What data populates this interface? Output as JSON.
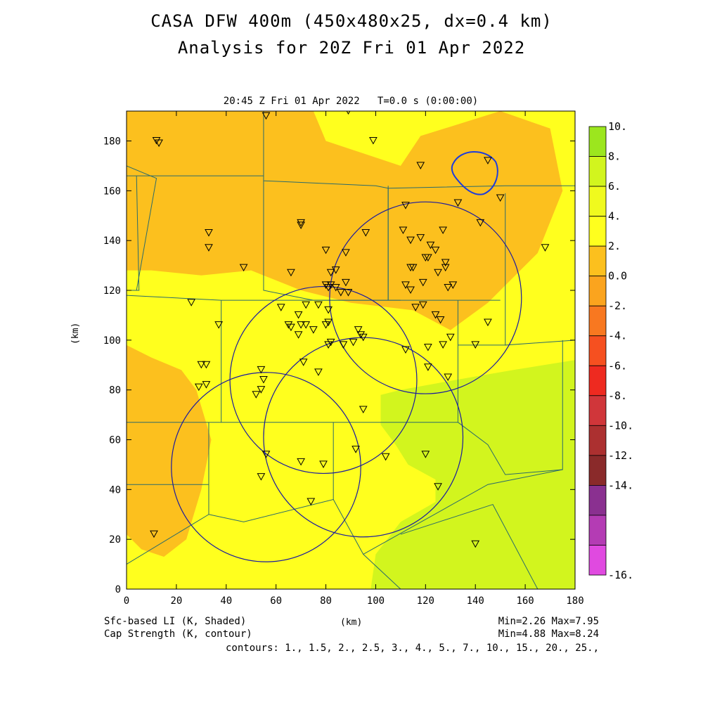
{
  "title_line1": "CASA DFW 400m (450x480x25, dx=0.4 km)",
  "title_line2": "Analysis for 20Z Fri 01 Apr 2022",
  "panel_subtitle": "20:45 Z Fri 01 Apr 2022   T=0.0 s (0:00:00)",
  "footer": {
    "field1_label": "Sfc-based LI (K, Shaded)",
    "field2_label": "Cap Strength (K, contour)",
    "field1_range": "Min=2.26 Max=7.95",
    "field2_range": "Min=4.88 Max=8.24",
    "contours": "contours: 1., 1.5, 2., 2.5, 3., 4., 5., 7., 10., 15., 20., 25.,"
  },
  "chart_data": {
    "type": "heatmap",
    "xlabel": "(km)",
    "ylabel": "(km)",
    "xlim": [
      0,
      180
    ],
    "ylim": [
      0,
      192
    ],
    "x_ticks": [
      0,
      20,
      40,
      60,
      80,
      100,
      120,
      140,
      160,
      180
    ],
    "y_ticks": [
      0,
      20,
      40,
      60,
      80,
      100,
      120,
      140,
      160,
      180
    ],
    "colorbar": {
      "labels": [
        "10.",
        "8.",
        "6.",
        "4.",
        "2.",
        "0.0",
        "-2.",
        "-4.",
        "-6.",
        "-8.",
        "-10.",
        "-12.",
        "-14.",
        "-16."
      ],
      "colors": [
        "#9ce61e",
        "#d2f51e",
        "#f0fa1e",
        "#ffff1e",
        "#fcc01e",
        "#fba41e",
        "#f87820",
        "#f65020",
        "#ee2a20",
        "#d0363a",
        "#ac3030",
        "#8a2a2a",
        "#8a3090",
        "#b43cb4",
        "#e04ae0"
      ]
    },
    "shaded_regions": [
      {
        "level": "2-4",
        "color": "#fcc01e",
        "polygon": [
          [
            0,
            192
          ],
          [
            75,
            192
          ],
          [
            80,
            180
          ],
          [
            110,
            170
          ],
          [
            118,
            182
          ],
          [
            150,
            192
          ],
          [
            170,
            185
          ],
          [
            175,
            160
          ],
          [
            165,
            135
          ],
          [
            145,
            115
          ],
          [
            130,
            104
          ],
          [
            115,
            112
          ],
          [
            90,
            115
          ],
          [
            70,
            120
          ],
          [
            50,
            128
          ],
          [
            30,
            126
          ],
          [
            10,
            128
          ],
          [
            0,
            128
          ]
        ]
      },
      {
        "level": "2-4",
        "color": "#fcc01e",
        "polygon": [
          [
            0,
            98
          ],
          [
            10,
            93
          ],
          [
            22,
            88
          ],
          [
            28,
            80
          ],
          [
            34,
            60
          ],
          [
            30,
            40
          ],
          [
            24,
            20
          ],
          [
            15,
            13
          ],
          [
            6,
            16
          ],
          [
            0,
            22
          ]
        ]
      },
      {
        "level": "6-8",
        "color": "#d2f51e",
        "polygon": [
          [
            180,
            92
          ],
          [
            155,
            88
          ],
          [
            132,
            84
          ],
          [
            110,
            80
          ],
          [
            102,
            78
          ],
          [
            102,
            66
          ],
          [
            108,
            58
          ],
          [
            113,
            50
          ],
          [
            124,
            44
          ],
          [
            124,
            35
          ],
          [
            110,
            27
          ],
          [
            100,
            14
          ],
          [
            98,
            0
          ],
          [
            180,
            0
          ]
        ]
      }
    ],
    "cap_contours": [
      {
        "shape": "circle",
        "center": [
          120,
          117
        ],
        "radius": 38.5
      },
      {
        "shape": "circle",
        "center": [
          79,
          84
        ],
        "radius": 37.5
      },
      {
        "shape": "circle",
        "center": [
          56,
          49
        ],
        "radius": 38
      },
      {
        "shape": "circle",
        "center": [
          95,
          61
        ],
        "radius": 40
      }
    ],
    "stations": [
      [
        12,
        180
      ],
      [
        13,
        179
      ],
      [
        56,
        190
      ],
      [
        89,
        192
      ],
      [
        99,
        180
      ],
      [
        118,
        170
      ],
      [
        145,
        172
      ],
      [
        150,
        157
      ],
      [
        133,
        155
      ],
      [
        33,
        143
      ],
      [
        33,
        137
      ],
      [
        70,
        147
      ],
      [
        70,
        146
      ],
      [
        112,
        154
      ],
      [
        118,
        141
      ],
      [
        142,
        147
      ],
      [
        127,
        144
      ],
      [
        111,
        144
      ],
      [
        114,
        140
      ],
      [
        122,
        138
      ],
      [
        124,
        136
      ],
      [
        121,
        133
      ],
      [
        120,
        133
      ],
      [
        128,
        131
      ],
      [
        168,
        137
      ],
      [
        47,
        129
      ],
      [
        66,
        127
      ],
      [
        80,
        136
      ],
      [
        88,
        135
      ],
      [
        96,
        143
      ],
      [
        82,
        127
      ],
      [
        84,
        128
      ],
      [
        88,
        123
      ],
      [
        80,
        122
      ],
      [
        82,
        122
      ],
      [
        81,
        121
      ],
      [
        84,
        121
      ],
      [
        86,
        119
      ],
      [
        89,
        119
      ],
      [
        112,
        122
      ],
      [
        114,
        120
      ],
      [
        114,
        129
      ],
      [
        115,
        129
      ],
      [
        125,
        127
      ],
      [
        128,
        129
      ],
      [
        131,
        122
      ],
      [
        129,
        121
      ],
      [
        119,
        123
      ],
      [
        77,
        114
      ],
      [
        81,
        112
      ],
      [
        72,
        114
      ],
      [
        62,
        113
      ],
      [
        69,
        110
      ],
      [
        116,
        113
      ],
      [
        119,
        114
      ],
      [
        124,
        110
      ],
      [
        126,
        108
      ],
      [
        145,
        107
      ],
      [
        37,
        106
      ],
      [
        26,
        115
      ],
      [
        65,
        106
      ],
      [
        66,
        105
      ],
      [
        70,
        106
      ],
      [
        72,
        106
      ],
      [
        80,
        106
      ],
      [
        81,
        107
      ],
      [
        69,
        102
      ],
      [
        75,
        104
      ],
      [
        93,
        104
      ],
      [
        94,
        102
      ],
      [
        95,
        101
      ],
      [
        82,
        99
      ],
      [
        81,
        98
      ],
      [
        87,
        98
      ],
      [
        91,
        99
      ],
      [
        130,
        101
      ],
      [
        127,
        98
      ],
      [
        121,
        97
      ],
      [
        140,
        98
      ],
      [
        112,
        96
      ],
      [
        30,
        90
      ],
      [
        32,
        90
      ],
      [
        71,
        91
      ],
      [
        77,
        87
      ],
      [
        54,
        88
      ],
      [
        55,
        84
      ],
      [
        121,
        89
      ],
      [
        129,
        85
      ],
      [
        29,
        81
      ],
      [
        32,
        82
      ],
      [
        54,
        80
      ],
      [
        52,
        78
      ],
      [
        95,
        72
      ],
      [
        92,
        56
      ],
      [
        104,
        53
      ],
      [
        120,
        54
      ],
      [
        56,
        54
      ],
      [
        70,
        51
      ],
      [
        79,
        50
      ],
      [
        54,
        45
      ],
      [
        125,
        41
      ],
      [
        74,
        35
      ],
      [
        140,
        18
      ],
      [
        11,
        22
      ]
    ],
    "boundaries": [
      [
        [
          0,
          166
        ],
        [
          55,
          166
        ],
        [
          55,
          192
        ]
      ],
      [
        [
          55,
          166
        ],
        [
          55,
          164
        ],
        [
          100,
          162
        ],
        [
          105,
          161
        ],
        [
          152,
          162
        ],
        [
          180,
          162
        ]
      ],
      [
        [
          55,
          164
        ],
        [
          55,
          120
        ],
        [
          75,
          116
        ],
        [
          100,
          116
        ],
        [
          110,
          116
        ]
      ],
      [
        [
          4,
          166
        ],
        [
          5,
          120
        ],
        [
          0,
          120
        ]
      ],
      [
        [
          0,
          118
        ],
        [
          38,
          116
        ],
        [
          100,
          116
        ],
        [
          150,
          116
        ]
      ],
      [
        [
          38,
          116
        ],
        [
          38,
          67
        ],
        [
          0,
          67
        ]
      ],
      [
        [
          38,
          67
        ],
        [
          133,
          67
        ],
        [
          133,
          116
        ]
      ],
      [
        [
          105,
          161
        ],
        [
          105,
          116
        ]
      ],
      [
        [
          105,
          116
        ],
        [
          105,
          162
        ]
      ],
      [
        [
          152,
          159
        ],
        [
          152,
          98
        ],
        [
          180,
          100
        ]
      ],
      [
        [
          152,
          98
        ],
        [
          133,
          98
        ]
      ],
      [
        [
          175,
          100
        ],
        [
          175,
          48
        ],
        [
          152,
          46
        ],
        [
          145,
          58
        ],
        [
          133,
          67
        ]
      ],
      [
        [
          33,
          67
        ],
        [
          33,
          42
        ],
        [
          0,
          42
        ]
      ],
      [
        [
          33,
          42
        ],
        [
          33,
          30
        ],
        [
          0,
          10
        ]
      ],
      [
        [
          83,
          67
        ],
        [
          83,
          36
        ],
        [
          47,
          27
        ],
        [
          33,
          30
        ]
      ],
      [
        [
          83,
          36
        ],
        [
          95,
          14
        ],
        [
          110,
          0
        ]
      ],
      [
        [
          95,
          14
        ],
        [
          145,
          42
        ],
        [
          175,
          48
        ]
      ],
      [
        [
          110,
          22
        ],
        [
          147,
          34
        ],
        [
          165,
          0
        ]
      ],
      [
        [
          0,
          170
        ],
        [
          12,
          165
        ],
        [
          4,
          120
        ]
      ]
    ],
    "boundary_color": "#2b6b6b",
    "contour_color": "#1a1aa0",
    "highlight_contour_color": "#1e3cdc"
  }
}
